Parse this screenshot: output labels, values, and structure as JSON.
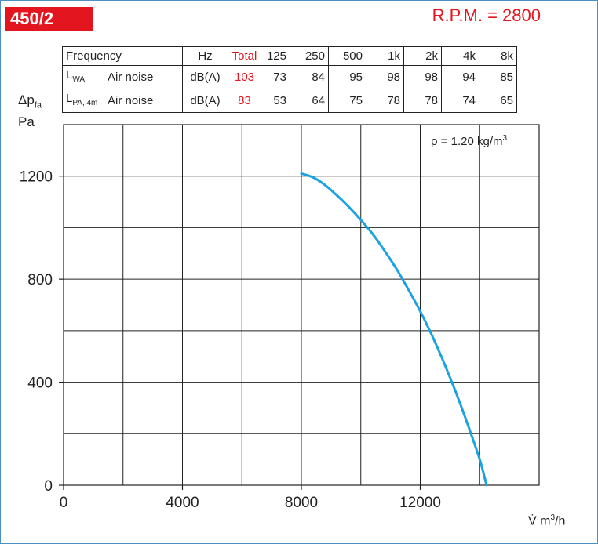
{
  "header": {
    "model": "450/2",
    "rpm": "R.P.M. = 2800"
  },
  "noise_table": {
    "header": [
      "Frequency",
      "Hz",
      "Total",
      "125",
      "250",
      "500",
      "1k",
      "2k",
      "4k",
      "8k"
    ],
    "rows": [
      {
        "symbol_main": "L",
        "symbol_sub": "WA",
        "type": "Air noise",
        "unit": "dB(A)",
        "total": "103",
        "values": [
          "73",
          "84",
          "95",
          "98",
          "98",
          "94",
          "85"
        ]
      },
      {
        "symbol_main": "L",
        "symbol_sub": "PA, 4m",
        "type": "Air noise",
        "unit": "dB(A)",
        "total": "83",
        "values": [
          "53",
          "64",
          "75",
          "78",
          "78",
          "74",
          "65"
        ]
      }
    ]
  },
  "chart_data": {
    "type": "line",
    "ylabel_main": "Δp",
    "ylabel_sub": "fa",
    "yunit": "Pa",
    "xlabel_main": "V̇ m",
    "xlabel_sup": "3",
    "xlabel_tail": "/h",
    "density_main": "ρ = 1.20 kg/m",
    "density_sup": "3",
    "xlim": [
      0,
      16000
    ],
    "ylim": [
      0,
      1200
    ],
    "x_tick_labels": [
      "0",
      "4000",
      "8000",
      "12000"
    ],
    "x_tick_values": [
      0,
      4000,
      8000,
      12000
    ],
    "y_tick_labels": [
      "0",
      "400",
      "800",
      "1200"
    ],
    "y_tick_values": [
      0,
      400,
      800,
      1200
    ],
    "grid": true,
    "line_color": "#1aa3e0",
    "series": [
      {
        "x": [
          8000,
          8400,
          8800,
          9200,
          9600,
          10000,
          10400,
          10800,
          11200,
          11600,
          12000,
          12400,
          12800,
          13200,
          13600,
          14000,
          14230
        ],
        "y": [
          1210,
          1195,
          1165,
          1125,
          1080,
          1030,
          975,
          910,
          840,
          760,
          675,
          580,
          475,
          360,
          235,
          100,
          0
        ]
      }
    ]
  }
}
